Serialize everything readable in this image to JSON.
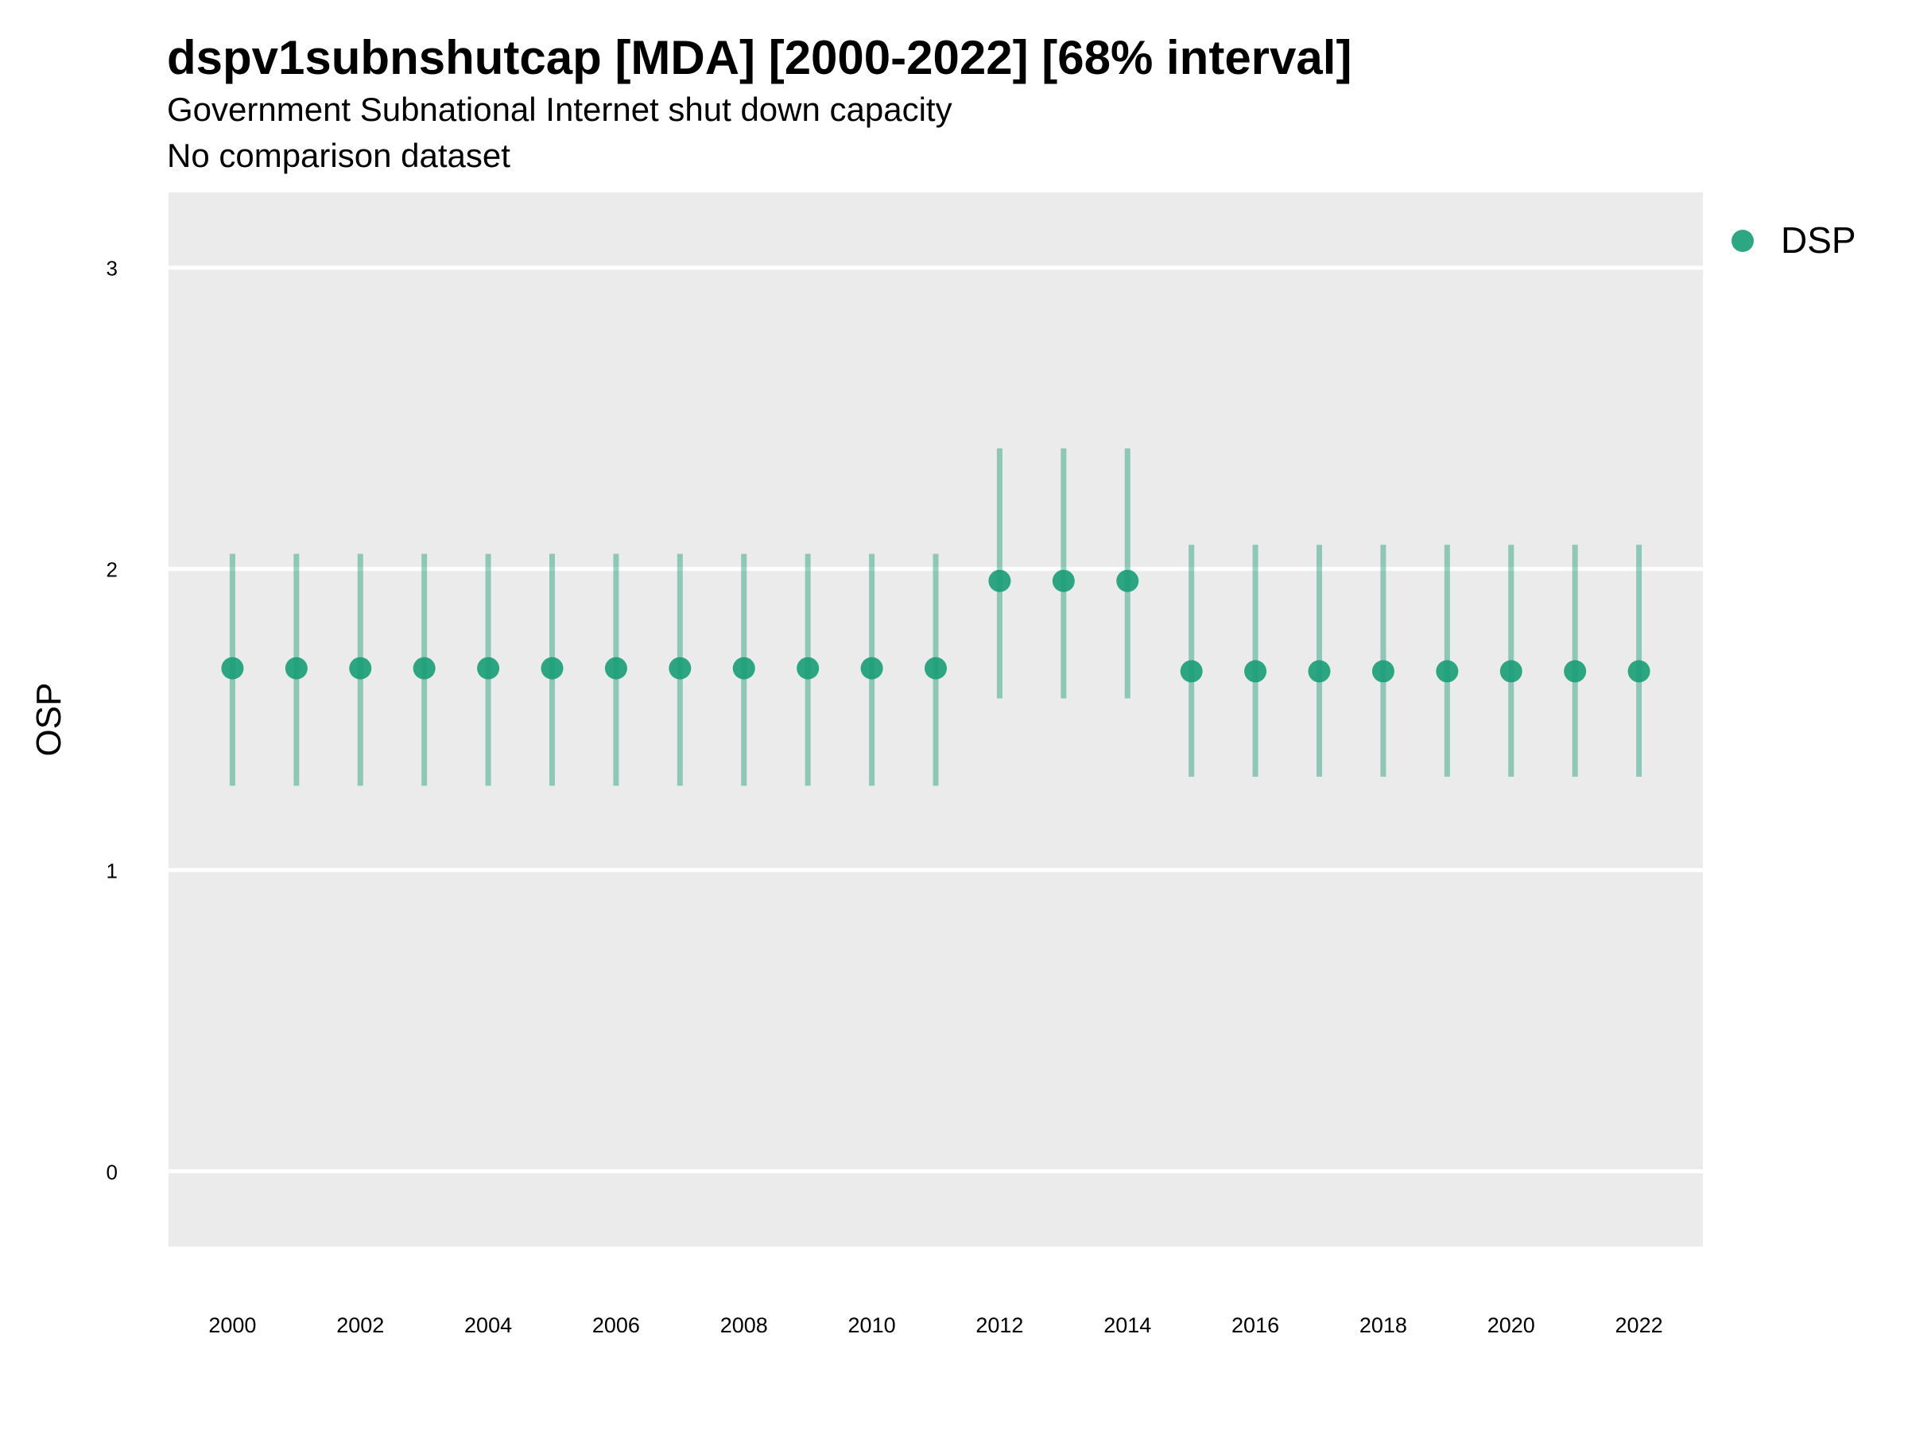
{
  "chart_data": {
    "type": "scatter",
    "title": "dspv1subnshutcap [MDA] [2000-2022] [68% interval]",
    "subtitle": "Government Subnational Internet shut down capacity",
    "subtitle2": "No comparison dataset",
    "xlabel": "",
    "ylabel": "OSP",
    "xlim": [
      1999,
      2023
    ],
    "ylim": [
      -0.25,
      3.25
    ],
    "xticks": [
      2000,
      2002,
      2004,
      2006,
      2008,
      2010,
      2012,
      2014,
      2016,
      2018,
      2020,
      2022
    ],
    "yticks": [
      0,
      1,
      2,
      3
    ],
    "grid": true,
    "legend_position": "right",
    "series": [
      {
        "name": "DSP",
        "color": "#1b9e77",
        "x": [
          2000,
          2001,
          2002,
          2003,
          2004,
          2005,
          2006,
          2007,
          2008,
          2009,
          2010,
          2011,
          2012,
          2013,
          2014,
          2015,
          2016,
          2017,
          2018,
          2019,
          2020,
          2021,
          2022
        ],
        "y": [
          1.67,
          1.67,
          1.67,
          1.67,
          1.67,
          1.67,
          1.67,
          1.67,
          1.67,
          1.67,
          1.67,
          1.67,
          1.96,
          1.96,
          1.96,
          1.66,
          1.66,
          1.66,
          1.66,
          1.66,
          1.66,
          1.66,
          1.66
        ],
        "lower": [
          1.28,
          1.28,
          1.28,
          1.28,
          1.28,
          1.28,
          1.28,
          1.28,
          1.28,
          1.28,
          1.28,
          1.28,
          1.57,
          1.57,
          1.57,
          1.31,
          1.31,
          1.31,
          1.31,
          1.31,
          1.31,
          1.31,
          1.31
        ],
        "upper": [
          2.05,
          2.05,
          2.05,
          2.05,
          2.05,
          2.05,
          2.05,
          2.05,
          2.05,
          2.05,
          2.05,
          2.05,
          2.4,
          2.4,
          2.4,
          2.08,
          2.08,
          2.08,
          2.08,
          2.08,
          2.08,
          2.08,
          2.08
        ]
      }
    ]
  }
}
